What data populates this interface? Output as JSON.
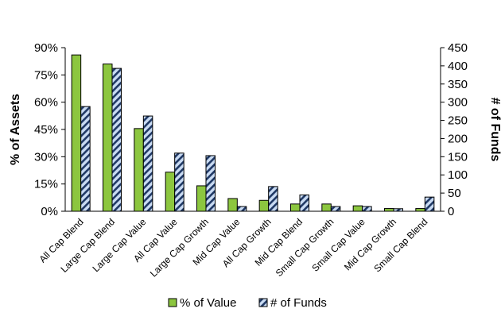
{
  "chart_data": {
    "type": "bar",
    "title": "",
    "categories": [
      "All Cap Blend",
      "Large Cap Blend",
      "Large Cap Value",
      "All Cap Value",
      "Large Cap Growth",
      "Mid Cap Value",
      "All Cap Growth",
      "Mid Cap Blend",
      "Small Cap Growth",
      "Small Cap Value",
      "Mid Cap Growth",
      "Small Cap Blend"
    ],
    "series": [
      {
        "name": "% of Value",
        "axis": "left",
        "color": "#8cc63f",
        "pattern": "solid",
        "values": [
          86,
          81,
          45.5,
          21.5,
          14,
          7,
          6,
          4,
          4,
          3,
          1.5,
          1.5
        ]
      },
      {
        "name": "# of Funds",
        "axis": "right",
        "color": "#a9c4ea",
        "pattern": "diagonal-stripes",
        "values": [
          288,
          393,
          262,
          160,
          153,
          13,
          68,
          45,
          13,
          13,
          7,
          39
        ]
      }
    ],
    "ylabel": "% of Assets",
    "y2label": "# of Funds",
    "ylim": [
      0,
      90
    ],
    "y2lim": [
      0,
      450
    ],
    "yticks": [
      "0%",
      "15%",
      "30%",
      "45%",
      "60%",
      "75%",
      "90%"
    ],
    "y2ticks": [
      "0",
      "50",
      "100",
      "150",
      "200",
      "250",
      "300",
      "350",
      "400",
      "450"
    ],
    "grid": false,
    "legend_position": "bottom"
  }
}
